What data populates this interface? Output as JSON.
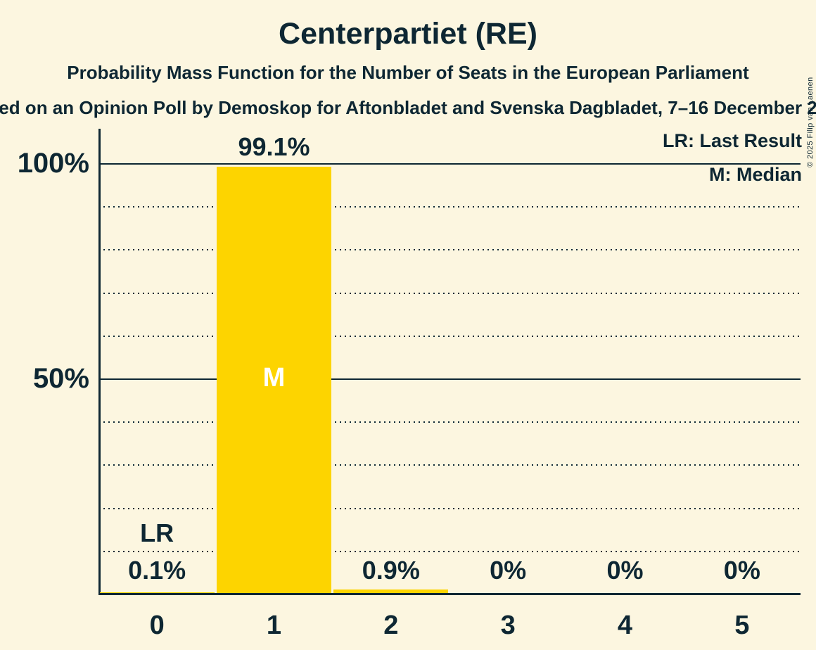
{
  "header": {
    "title": "Centerpartiet (RE)",
    "subtitle": "Probability Mass Function for the Number of Seats in the European Parliament",
    "source_line": "ed on an Opinion Poll by Demoskop for Aftonbladet and Svenska Dagbladet, 7–16 December 2"
  },
  "legend": {
    "last_result": "LR: Last Result",
    "median": "M: Median"
  },
  "footer": {
    "copyright": "© 2025 Filip van Laenen"
  },
  "colors": {
    "background": "#FCF6E0",
    "text": "#0E2733",
    "bar": "#FDD400",
    "median_label": "#FFFFFF"
  },
  "chart_data": {
    "type": "bar",
    "title": "Centerpartiet (RE)",
    "xlabel": "",
    "ylabel": "",
    "categories": [
      "0",
      "1",
      "2",
      "3",
      "4",
      "5"
    ],
    "values": [
      0.1,
      99.1,
      0.9,
      0,
      0,
      0
    ],
    "value_labels": [
      "0.1%",
      "99.1%",
      "0.9%",
      "0%",
      "0%",
      "0%"
    ],
    "ylim": [
      0,
      100
    ],
    "yticks": [
      {
        "value": 100,
        "label": "100%"
      },
      {
        "value": 50,
        "label": "50%"
      }
    ],
    "solid_gridlines": [
      100,
      50
    ],
    "dotted_gridlines": [
      90,
      80,
      70,
      60,
      40,
      30,
      20,
      10
    ],
    "grid": true,
    "legend_position": "top-right",
    "median_category": "1",
    "median_marker": "M",
    "last_result_category": "0",
    "last_result_marker": "LR"
  }
}
